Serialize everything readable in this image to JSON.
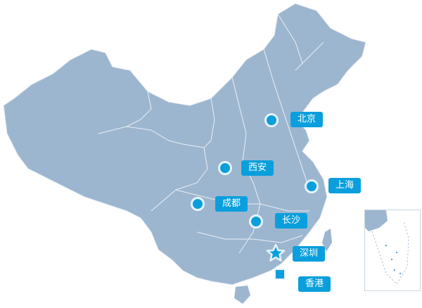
{
  "colors": {
    "land": "#9db6cf",
    "border": "#e8eef5",
    "marker": "#0a9fdc",
    "halo": "#e6f3fb"
  },
  "cities": [
    {
      "name": "北京",
      "marker": "circle-icon"
    },
    {
      "name": "西安",
      "marker": "circle-icon"
    },
    {
      "name": "上海",
      "marker": "circle-icon"
    },
    {
      "name": "成都",
      "marker": "circle-icon"
    },
    {
      "name": "长沙",
      "marker": "circle-icon"
    },
    {
      "name": "深圳",
      "marker": "star-icon"
    },
    {
      "name": "香港",
      "marker": "square-icon"
    }
  ]
}
